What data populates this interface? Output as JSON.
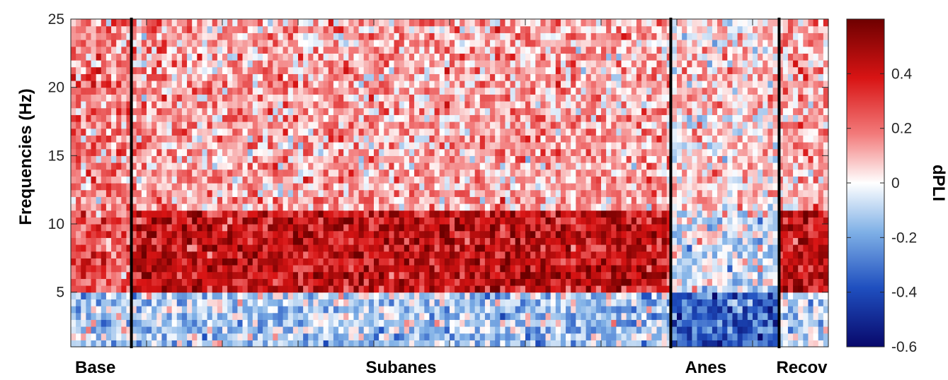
{
  "chart_data": {
    "type": "heatmap",
    "ylabel": "Frequencies (Hz)",
    "ylim": [
      1,
      25
    ],
    "y_ticks": [
      "5",
      "10",
      "15",
      "20",
      "25"
    ],
    "x_range": [
      0,
      1
    ],
    "phases": [
      {
        "label": "Base",
        "start": 0.0,
        "end": 0.08
      },
      {
        "label": "Subanes",
        "start": 0.08,
        "end": 0.792
      },
      {
        "label": "Anes",
        "start": 0.792,
        "end": 0.935
      },
      {
        "label": "Recov",
        "start": 0.935,
        "end": 1.0
      }
    ],
    "phase_boundaries": [
      0.08,
      0.792,
      0.935
    ],
    "colorbar": {
      "label": "dPLI",
      "clim": [
        -0.6,
        0.6
      ],
      "ticks": [
        "-0.6",
        "-0.4",
        "-0.2",
        "0",
        "0.2",
        "0.4"
      ],
      "colors": {
        "min": "#08086b",
        "mid": "#ffffff",
        "max": "#7a0000",
        "low_mid": "#2f74d0",
        "high_mid": "#e21a1a"
      }
    },
    "value_profile": {
      "description_free": true,
      "bands": [
        {
          "f_low": 1,
          "f_high": 5,
          "mean_by_phase": [
            -0.12,
            -0.12,
            -0.35,
            -0.08
          ]
        },
        {
          "f_low": 5,
          "f_high": 11,
          "mean_by_phase": [
            0.25,
            0.42,
            -0.05,
            0.42
          ]
        },
        {
          "f_low": 11,
          "f_high": 25,
          "mean_by_phase": [
            0.18,
            0.12,
            0.05,
            0.12
          ]
        }
      ]
    }
  }
}
